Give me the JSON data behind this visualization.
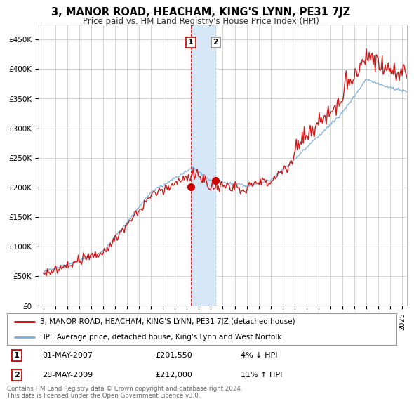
{
  "title": "3, MANOR ROAD, HEACHAM, KING'S LYNN, PE31 7JZ",
  "subtitle": "Price paid vs. HM Land Registry's House Price Index (HPI)",
  "ylabel_ticks": [
    "£0",
    "£50K",
    "£100K",
    "£150K",
    "£200K",
    "£250K",
    "£300K",
    "£350K",
    "£400K",
    "£450K"
  ],
  "ytick_vals": [
    0,
    50000,
    100000,
    150000,
    200000,
    250000,
    300000,
    350000,
    400000,
    450000
  ],
  "ylim": [
    0,
    475000
  ],
  "xlim_start": 1994.6,
  "xlim_end": 2025.4,
  "sale1_x": 2007.33,
  "sale1_y": 201550,
  "sale2_x": 2009.41,
  "sale2_y": 212000,
  "highlight_x_start": 2007.33,
  "highlight_x_end": 2009.41,
  "line1_label": "3, MANOR ROAD, HEACHAM, KING'S LYNN, PE31 7JZ (detached house)",
  "line2_label": "HPI: Average price, detached house, King's Lynn and West Norfolk",
  "annotation1_date": "01-MAY-2007",
  "annotation1_price": "£201,550",
  "annotation1_hpi": "4% ↓ HPI",
  "annotation2_date": "28-MAY-2009",
  "annotation2_price": "£212,000",
  "annotation2_hpi": "11% ↑ HPI",
  "footer": "Contains HM Land Registry data © Crown copyright and database right 2024.\nThis data is licensed under the Open Government Licence v3.0.",
  "line1_color": "#cc0000",
  "line2_color": "#7aaddc",
  "bg_color": "#ffffff",
  "grid_color": "#cccccc",
  "highlight_color": "#d6e8f7",
  "vline1_color": "#cc0000",
  "vline2_color": "#aaccee"
}
